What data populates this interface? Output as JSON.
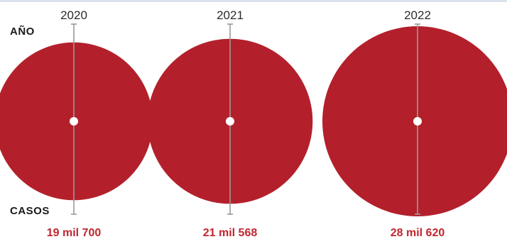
{
  "row_labels": {
    "year": "AÑO",
    "cases": "CASOS"
  },
  "colors": {
    "bubble": "#b3202b",
    "value_text": "#c0262f",
    "year_text": "#2b2b2b",
    "stem": "#9a9a9a",
    "top_rule": "#c9d7e6"
  },
  "chart_data": {
    "type": "bubble",
    "encoding": "circle area proportional to cases",
    "categories": [
      "2020",
      "2021",
      "2022"
    ],
    "values": [
      19700,
      21568,
      28620
    ],
    "value_labels": [
      "19 mil 700",
      "21 mil 568",
      "28 mil 620"
    ],
    "xlabel": "AÑO",
    "ylabel": "CASOS"
  }
}
